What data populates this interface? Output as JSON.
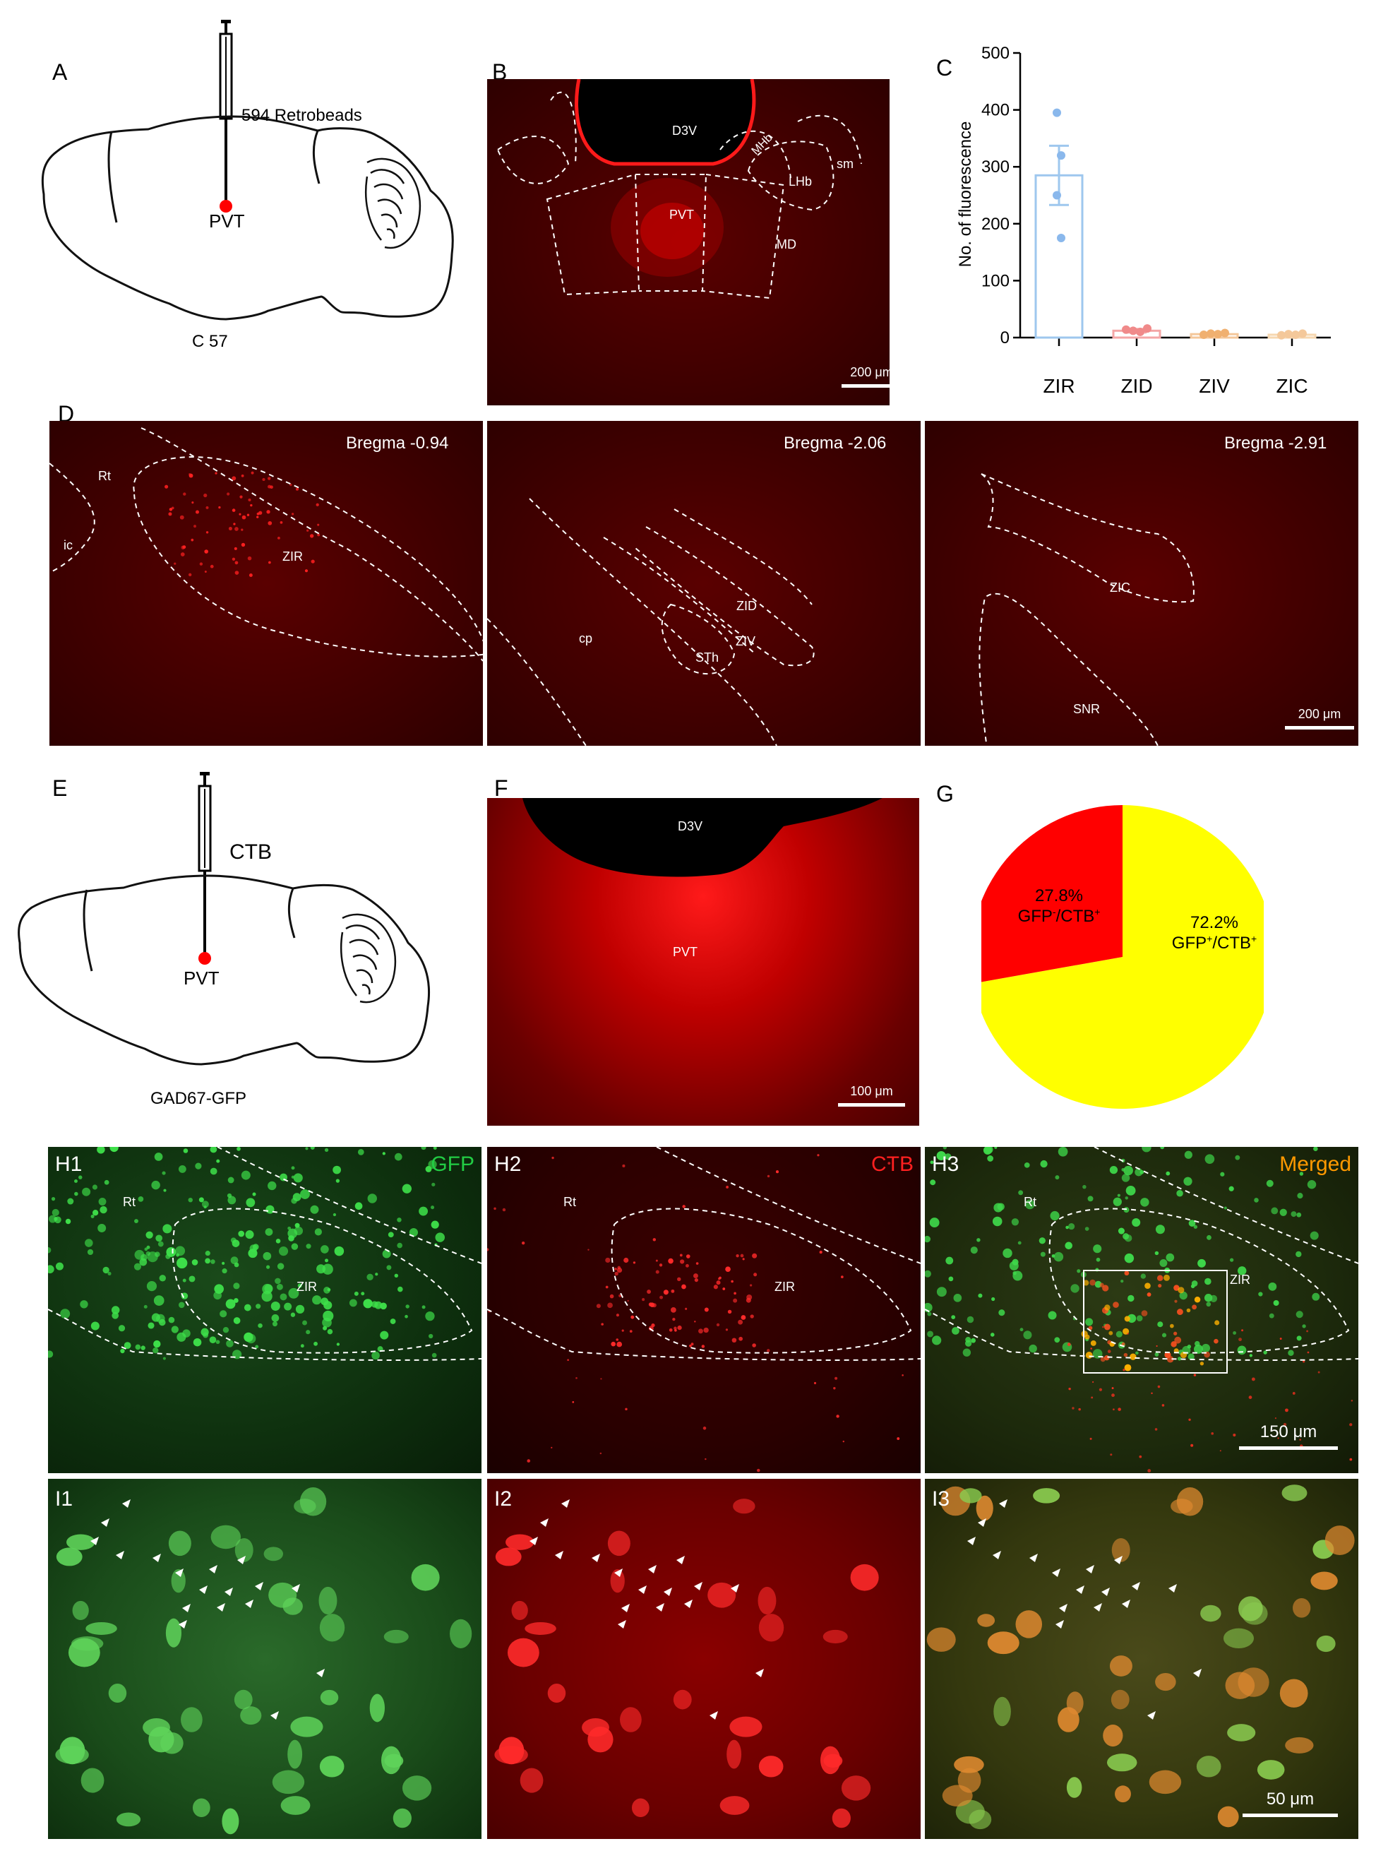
{
  "panels": {
    "A": {
      "letter": "A",
      "tracer": "594 Retrobeads",
      "target": "PVT",
      "strain": "C 57"
    },
    "B": {
      "letter": "B",
      "labels": [
        "D3V",
        "MHb",
        "sm",
        "LHb",
        "PVT",
        "MD"
      ],
      "scale": "200 μm"
    },
    "C": {
      "letter": "C"
    },
    "D": {
      "letter": "D",
      "sections": [
        {
          "bregma": "Bregma -0.94",
          "labels": [
            "Rt",
            "ic",
            "ZIR"
          ]
        },
        {
          "bregma": "Bregma -2.06",
          "labels": [
            "ZID",
            "cp",
            "ZIV",
            "STh"
          ]
        },
        {
          "bregma": "Bregma -2.91",
          "labels": [
            "ZIC",
            "SNR"
          ],
          "scale": "200 μm"
        }
      ]
    },
    "E": {
      "letter": "E",
      "tracer": "CTB",
      "target": "PVT",
      "strain": "GAD67-GFP"
    },
    "F": {
      "letter": "F",
      "labels": [
        "D3V",
        "PVT"
      ],
      "scale": "100 μm"
    },
    "G": {
      "letter": "G",
      "slices": [
        {
          "label": "GFP",
          "sup": "-",
          "rest": "/CTB",
          "sup2": "+",
          "value": 27.8,
          "display": "27.8%",
          "color": "#ff0000"
        },
        {
          "label": "GFP",
          "sup": "+",
          "rest": "/CTB",
          "sup2": "+",
          "value": 72.2,
          "display": "72.2%",
          "color": "#ffff00"
        }
      ]
    },
    "H": [
      {
        "letter": "H1",
        "channel": "GFP",
        "color": "#22cc44",
        "labels": [
          "Rt",
          "ZIR"
        ]
      },
      {
        "letter": "H2",
        "channel": "CTB",
        "color": "#ff2020",
        "labels": [
          "Rt",
          "ZIR"
        ]
      },
      {
        "letter": "H3",
        "channel": "Merged",
        "color": "#ff9900",
        "labels": [
          "Rt",
          "ZIR"
        ],
        "scale": "150 μm"
      }
    ],
    "I": [
      {
        "letter": "I1"
      },
      {
        "letter": "I2"
      },
      {
        "letter": "I3",
        "scale": "50 μm"
      }
    ]
  },
  "chart_data": {
    "type": "bar",
    "categories": [
      "ZIR",
      "ZID",
      "ZIV",
      "ZIC"
    ],
    "values": [
      285,
      12,
      6,
      5
    ],
    "errors": [
      52,
      3,
      2,
      2
    ],
    "points": [
      [
        395,
        320,
        250,
        175
      ],
      [
        14,
        12,
        10,
        16
      ],
      [
        5,
        7,
        6,
        8
      ],
      [
        4,
        6,
        5,
        7
      ]
    ],
    "colors": [
      "#9ec7ee",
      "#f4a6a6",
      "#f4c79a",
      "#f6d7b0"
    ],
    "pointColors": [
      "#8ab8ec",
      "#f08a8a",
      "#f0b070",
      "#f4c89a"
    ],
    "ylabel": "No. of fluorescence",
    "ylim": [
      0,
      500
    ],
    "yticks": [
      0,
      100,
      200,
      300,
      400,
      500
    ],
    "grid": false
  }
}
